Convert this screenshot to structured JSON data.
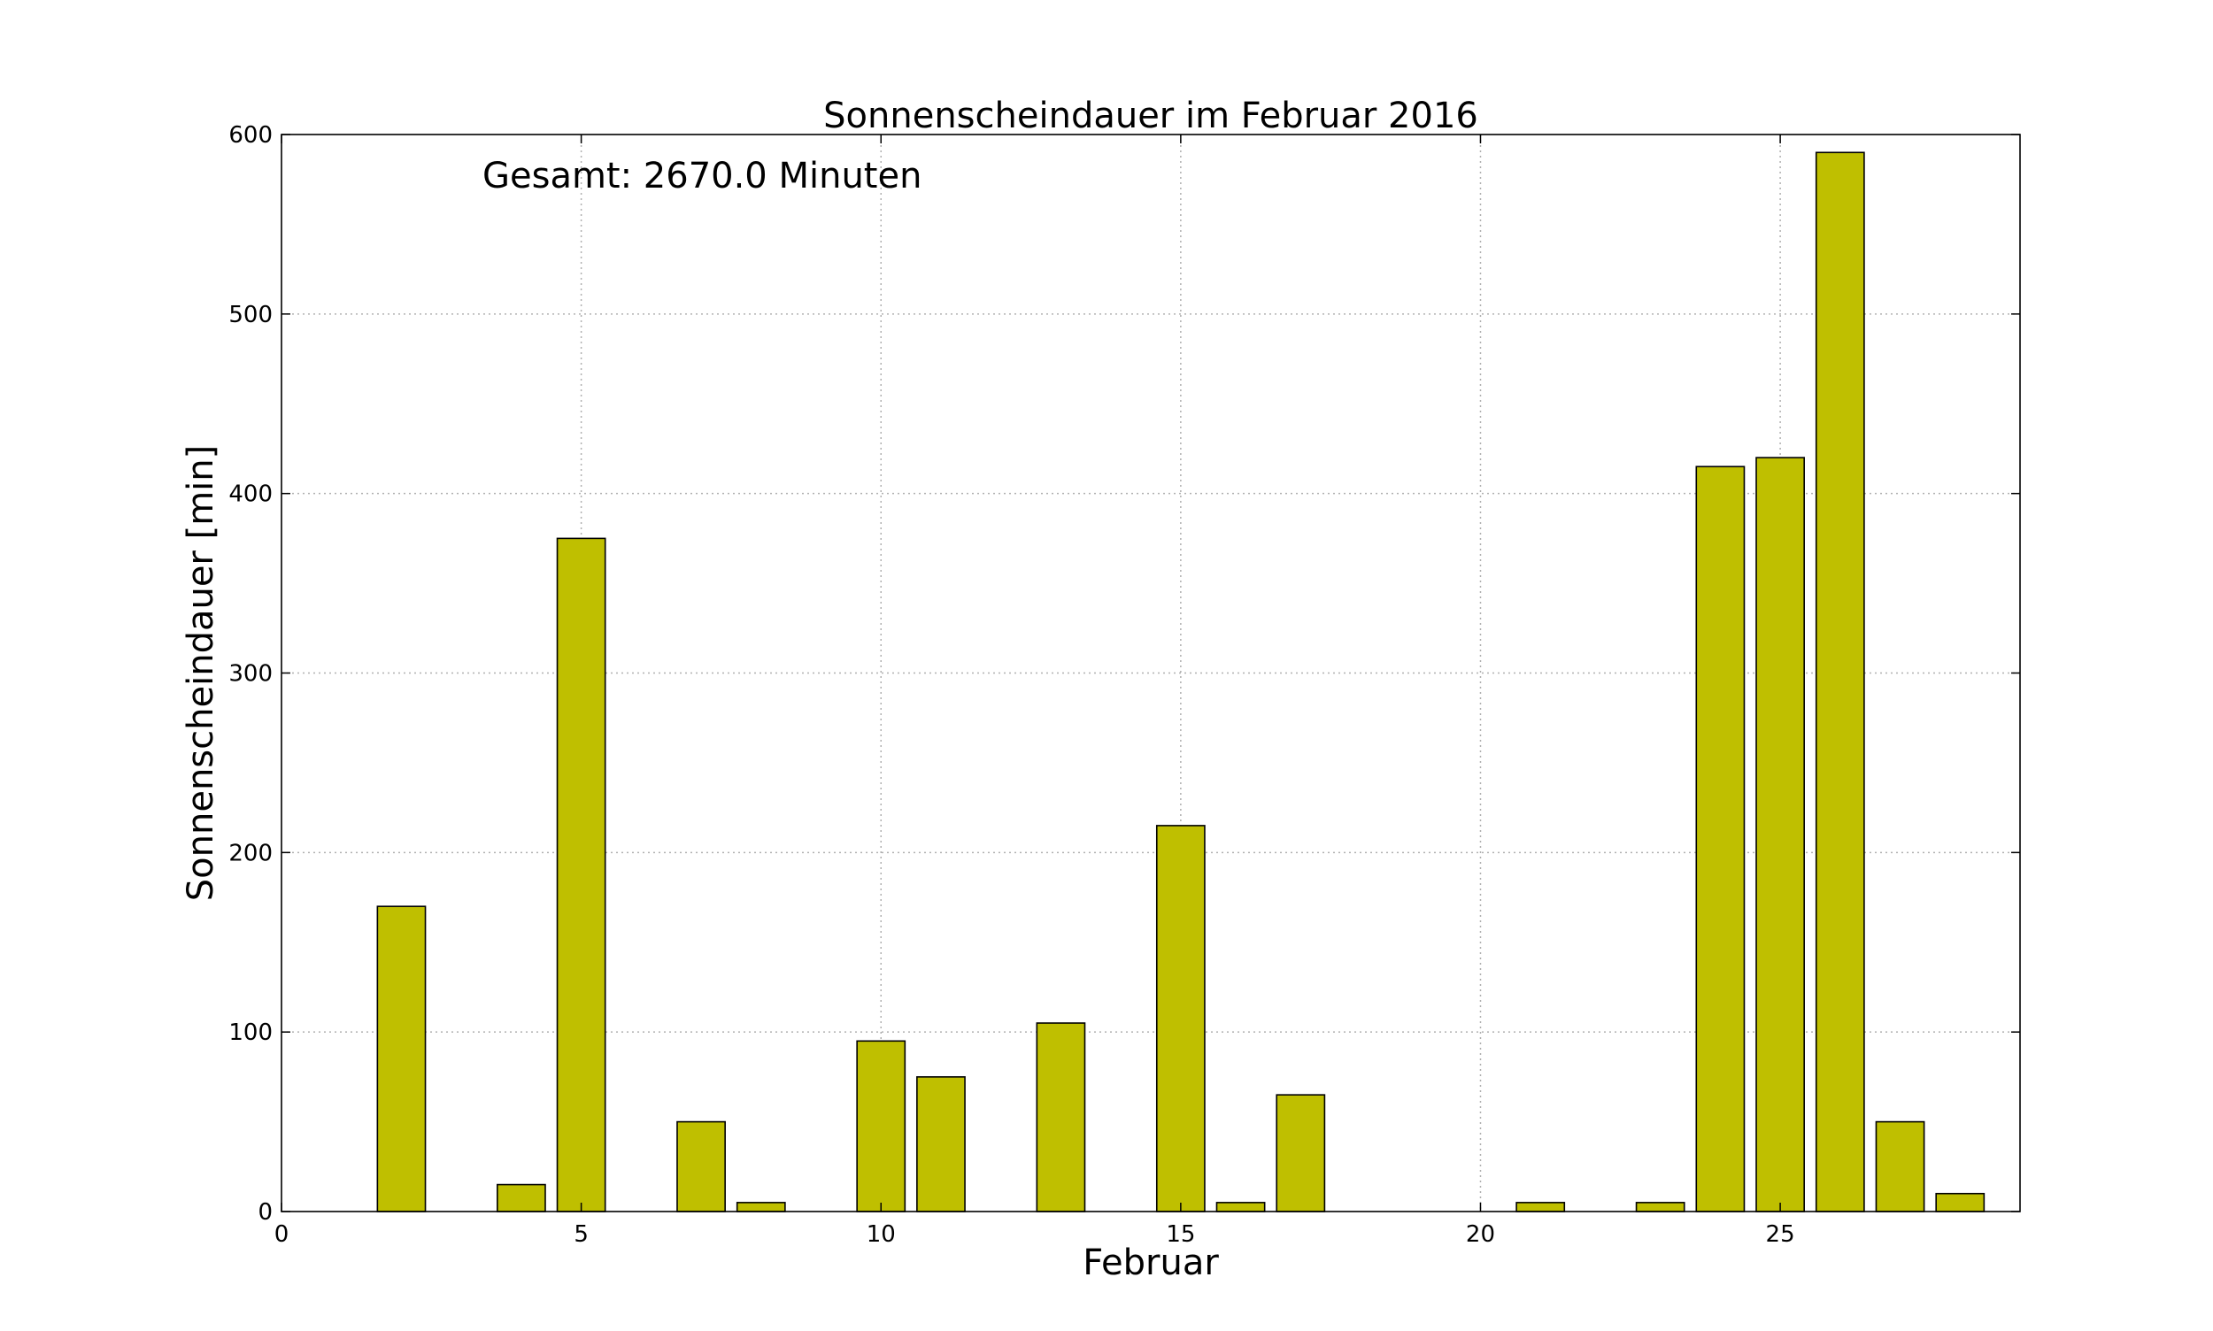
{
  "chart_data": {
    "type": "bar",
    "title": "Sonnenscheindauer im Februar 2016",
    "xlabel": "Februar",
    "ylabel": "Sonnenscheindauer [min]",
    "annotation": "Gesamt: 2670.0 Minuten",
    "x": [
      1,
      2,
      3,
      4,
      5,
      6,
      7,
      8,
      9,
      10,
      11,
      12,
      13,
      14,
      15,
      16,
      17,
      18,
      19,
      20,
      21,
      22,
      23,
      24,
      25,
      26,
      27,
      28,
      29
    ],
    "values": [
      0,
      170,
      0,
      15,
      375,
      0,
      50,
      5,
      0,
      95,
      75,
      0,
      105,
      0,
      215,
      5,
      65,
      0,
      0,
      0,
      5,
      0,
      5,
      415,
      420,
      590,
      50,
      10,
      0
    ],
    "bar_width": 0.8,
    "xlim": [
      0,
      29
    ],
    "ylim": [
      0,
      600
    ],
    "xticks": [
      0,
      5,
      10,
      15,
      20,
      25
    ],
    "yticks": [
      0,
      100,
      200,
      300,
      400,
      500,
      600
    ],
    "grid": true,
    "bar_color": "#bfbf00",
    "edge_color": "#000000"
  }
}
